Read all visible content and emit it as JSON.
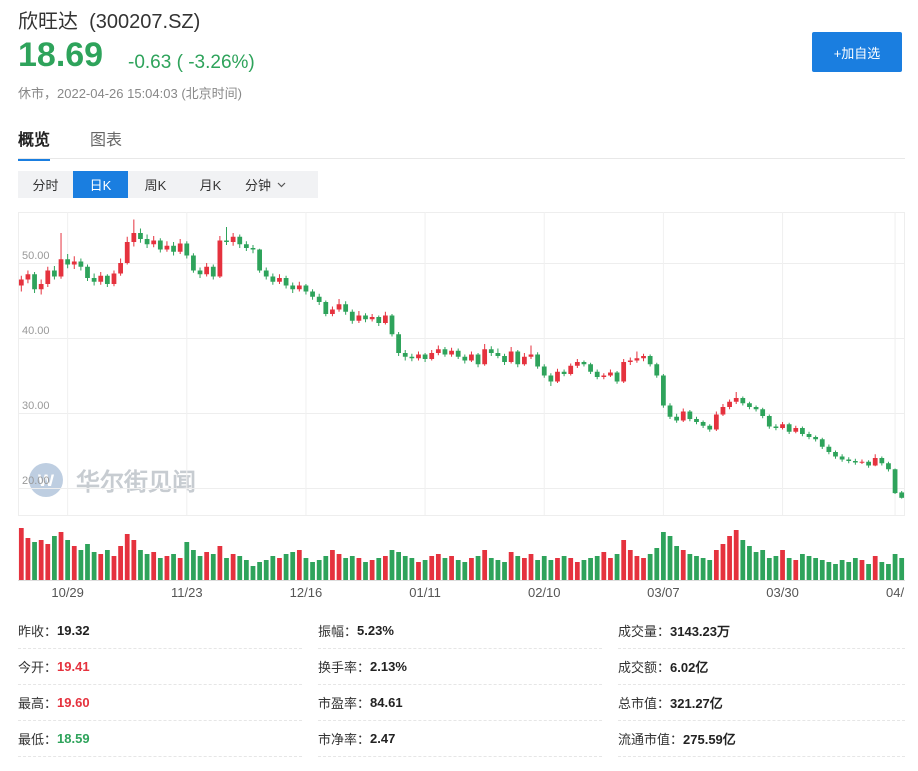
{
  "header": {
    "name": "欣旺达",
    "code": "(300207.SZ)",
    "price": "18.69",
    "change": "-0.63",
    "change_pct": "( -3.26%)",
    "status": "休市，2022-04-26 15:04:03 (北京时间)",
    "watch_button": "+加自选"
  },
  "tabs": [
    "概览",
    "图表"
  ],
  "periods": [
    "分时",
    "日K",
    "周K",
    "月K",
    "分钟"
  ],
  "watermark": "华尔街见闻",
  "chart_data": {
    "type": "candlestick",
    "categories": [
      null,
      null,
      null,
      null,
      null,
      null,
      null,
      "10/29",
      null,
      null,
      null,
      null,
      null,
      null,
      null,
      null,
      null,
      null,
      null,
      null,
      null,
      null,
      null,
      null,
      null,
      "11/23",
      null,
      null,
      null,
      null,
      null,
      null,
      null,
      null,
      null,
      null,
      null,
      null,
      null,
      null,
      null,
      null,
      null,
      "12/16",
      null,
      null,
      null,
      null,
      null,
      null,
      null,
      null,
      null,
      null,
      null,
      null,
      null,
      null,
      null,
      null,
      null,
      "01/11",
      null,
      null,
      null,
      null,
      null,
      null,
      null,
      null,
      null,
      null,
      null,
      null,
      null,
      null,
      null,
      null,
      null,
      "02/10",
      null,
      null,
      null,
      null,
      null,
      null,
      null,
      null,
      null,
      null,
      null,
      null,
      null,
      null,
      null,
      null,
      null,
      "03/07",
      null,
      null,
      null,
      null,
      null,
      null,
      null,
      null,
      null,
      null,
      null,
      null,
      null,
      null,
      null,
      null,
      null,
      "03/30",
      null,
      null,
      null,
      null,
      null,
      null,
      null,
      null,
      null,
      null,
      null,
      null,
      null,
      null,
      null,
      null,
      "04/",
      null
    ],
    "ohlc": [
      [
        47.0,
        48.3,
        46.2,
        47.8
      ],
      [
        47.8,
        49.0,
        47.3,
        48.5
      ],
      [
        48.5,
        48.8,
        46.0,
        46.5
      ],
      [
        46.5,
        47.8,
        45.8,
        47.2
      ],
      [
        47.2,
        49.5,
        46.8,
        49.0
      ],
      [
        49.0,
        49.6,
        47.8,
        48.2
      ],
      [
        48.2,
        54.0,
        47.9,
        50.5
      ],
      [
        50.5,
        51.2,
        49.3,
        49.8
      ],
      [
        49.8,
        50.9,
        49.2,
        50.2
      ],
      [
        50.2,
        50.6,
        49.0,
        49.5
      ],
      [
        49.5,
        49.8,
        47.6,
        48.0
      ],
      [
        48.0,
        48.6,
        47.0,
        47.5
      ],
      [
        47.5,
        48.8,
        47.1,
        48.3
      ],
      [
        48.3,
        48.5,
        46.8,
        47.2
      ],
      [
        47.2,
        49.0,
        46.9,
        48.6
      ],
      [
        48.6,
        50.6,
        48.3,
        50.0
      ],
      [
        50.0,
        53.5,
        49.8,
        52.8
      ],
      [
        52.8,
        55.8,
        52.2,
        54.0
      ],
      [
        54.0,
        54.6,
        52.7,
        53.2
      ],
      [
        53.2,
        53.8,
        52.0,
        52.5
      ],
      [
        52.5,
        53.6,
        52.1,
        53.0
      ],
      [
        53.0,
        53.3,
        51.4,
        51.8
      ],
      [
        51.8,
        52.9,
        51.5,
        52.3
      ],
      [
        52.3,
        52.8,
        51.0,
        51.5
      ],
      [
        51.5,
        53.2,
        51.2,
        52.6
      ],
      [
        52.6,
        52.9,
        50.6,
        51.0
      ],
      [
        51.0,
        51.3,
        48.7,
        49.0
      ],
      [
        49.0,
        49.4,
        48.0,
        48.5
      ],
      [
        48.5,
        50.0,
        48.2,
        49.5
      ],
      [
        49.5,
        49.8,
        47.8,
        48.2
      ],
      [
        48.2,
        53.6,
        48.0,
        53.0
      ],
      [
        53.0,
        54.8,
        52.4,
        52.8
      ],
      [
        52.8,
        54.0,
        52.3,
        53.5
      ],
      [
        53.5,
        53.8,
        52.0,
        52.5
      ],
      [
        52.5,
        52.9,
        51.6,
        52.0
      ],
      [
        52.0,
        52.4,
        51.3,
        51.8
      ],
      [
        51.8,
        51.9,
        48.7,
        49.0
      ],
      [
        49.0,
        49.4,
        47.8,
        48.2
      ],
      [
        48.2,
        48.6,
        47.1,
        47.5
      ],
      [
        47.5,
        48.5,
        47.2,
        48.0
      ],
      [
        48.0,
        48.3,
        46.6,
        47.0
      ],
      [
        47.0,
        47.4,
        46.0,
        46.5
      ],
      [
        46.5,
        47.5,
        46.2,
        47.0
      ],
      [
        47.0,
        47.2,
        45.8,
        46.2
      ],
      [
        46.2,
        46.5,
        45.1,
        45.5
      ],
      [
        45.5,
        45.9,
        44.4,
        44.8
      ],
      [
        44.8,
        45.0,
        42.9,
        43.2
      ],
      [
        43.2,
        44.2,
        42.9,
        43.8
      ],
      [
        43.8,
        45.2,
        43.5,
        44.5
      ],
      [
        44.5,
        44.9,
        43.1,
        43.5
      ],
      [
        43.5,
        43.8,
        41.9,
        42.3
      ],
      [
        42.3,
        43.6,
        42.0,
        43.0
      ],
      [
        43.0,
        43.3,
        42.1,
        42.5
      ],
      [
        42.5,
        43.2,
        42.2,
        42.8
      ],
      [
        42.8,
        43.0,
        41.6,
        42.0
      ],
      [
        42.0,
        43.5,
        41.8,
        43.0
      ],
      [
        43.0,
        43.2,
        40.2,
        40.5
      ],
      [
        40.5,
        40.8,
        37.6,
        38.0
      ],
      [
        38.0,
        38.4,
        37.0,
        37.5
      ],
      [
        37.5,
        37.9,
        36.9,
        37.3
      ],
      [
        37.3,
        38.2,
        37.0,
        37.8
      ],
      [
        37.8,
        38.0,
        36.8,
        37.2
      ],
      [
        37.2,
        38.4,
        37.0,
        38.0
      ],
      [
        38.0,
        39.0,
        37.7,
        38.5
      ],
      [
        38.5,
        38.8,
        37.5,
        37.8
      ],
      [
        37.8,
        38.7,
        37.5,
        38.3
      ],
      [
        38.3,
        38.6,
        37.2,
        37.5
      ],
      [
        37.5,
        37.8,
        36.6,
        37.0
      ],
      [
        37.0,
        38.2,
        36.8,
        37.8
      ],
      [
        37.8,
        38.0,
        36.1,
        36.5
      ],
      [
        36.5,
        39.2,
        36.3,
        38.5
      ],
      [
        38.5,
        38.9,
        37.6,
        38.0
      ],
      [
        38.0,
        38.6,
        37.3,
        37.6
      ],
      [
        37.6,
        37.9,
        36.4,
        36.8
      ],
      [
        36.8,
        38.8,
        36.6,
        38.2
      ],
      [
        38.2,
        38.4,
        36.1,
        36.5
      ],
      [
        36.5,
        38.0,
        36.3,
        37.5
      ],
      [
        37.5,
        39.0,
        37.2,
        37.8
      ],
      [
        37.8,
        38.1,
        35.9,
        36.2
      ],
      [
        36.2,
        36.5,
        34.7,
        35.0
      ],
      [
        35.0,
        35.3,
        33.6,
        34.2
      ],
      [
        34.2,
        35.9,
        34.0,
        35.5
      ],
      [
        35.5,
        35.8,
        34.9,
        35.2
      ],
      [
        35.2,
        36.6,
        35.0,
        36.3
      ],
      [
        36.3,
        37.2,
        36.0,
        36.8
      ],
      [
        36.8,
        37.0,
        36.2,
        36.5
      ],
      [
        36.5,
        36.7,
        35.2,
        35.5
      ],
      [
        35.5,
        35.8,
        34.5,
        34.8
      ],
      [
        34.8,
        35.3,
        34.5,
        35.0
      ],
      [
        35.0,
        35.8,
        34.8,
        35.4
      ],
      [
        35.4,
        35.6,
        33.9,
        34.2
      ],
      [
        34.2,
        37.2,
        34.0,
        36.8
      ],
      [
        36.8,
        37.4,
        36.4,
        37.0
      ],
      [
        37.0,
        38.2,
        36.7,
        37.3
      ],
      [
        37.3,
        37.9,
        36.9,
        37.6
      ],
      [
        37.6,
        37.8,
        36.2,
        36.5
      ],
      [
        36.5,
        36.7,
        34.7,
        35.0
      ],
      [
        35.0,
        35.2,
        30.7,
        31.0
      ],
      [
        31.0,
        31.3,
        29.2,
        29.5
      ],
      [
        29.5,
        29.9,
        28.7,
        29.0
      ],
      [
        29.0,
        30.6,
        28.8,
        30.2
      ],
      [
        30.2,
        30.4,
        28.9,
        29.2
      ],
      [
        29.2,
        29.5,
        28.5,
        28.8
      ],
      [
        28.8,
        29.0,
        28.0,
        28.3
      ],
      [
        28.3,
        28.5,
        27.5,
        27.8
      ],
      [
        27.8,
        30.2,
        27.6,
        29.8
      ],
      [
        29.8,
        31.2,
        29.6,
        30.8
      ],
      [
        30.8,
        31.8,
        30.5,
        31.5
      ],
      [
        31.5,
        32.8,
        31.2,
        32.0
      ],
      [
        32.0,
        32.2,
        31.0,
        31.3
      ],
      [
        31.3,
        31.5,
        30.5,
        30.8
      ],
      [
        30.8,
        31.0,
        30.2,
        30.5
      ],
      [
        30.5,
        30.7,
        29.3,
        29.6
      ],
      [
        29.6,
        29.8,
        27.9,
        28.2
      ],
      [
        28.2,
        28.5,
        27.7,
        28.0
      ],
      [
        28.0,
        28.8,
        27.8,
        28.5
      ],
      [
        28.5,
        28.7,
        27.2,
        27.5
      ],
      [
        27.5,
        28.3,
        27.3,
        28.0
      ],
      [
        28.0,
        28.2,
        26.9,
        27.2
      ],
      [
        27.2,
        27.5,
        26.5,
        26.8
      ],
      [
        26.8,
        27.0,
        26.2,
        26.5
      ],
      [
        26.5,
        26.7,
        25.2,
        25.5
      ],
      [
        25.5,
        25.8,
        24.5,
        24.8
      ],
      [
        24.8,
        25.0,
        23.9,
        24.2
      ],
      [
        24.2,
        24.5,
        23.5,
        23.8
      ],
      [
        23.8,
        24.1,
        23.3,
        23.6
      ],
      [
        23.6,
        23.9,
        23.1,
        23.4
      ],
      [
        23.4,
        23.8,
        23.2,
        23.5
      ],
      [
        23.5,
        23.7,
        22.7,
        23.0
      ],
      [
        23.0,
        24.5,
        22.9,
        24.0
      ],
      [
        24.0,
        24.2,
        23.0,
        23.3
      ],
      [
        23.3,
        23.5,
        22.2,
        22.5
      ],
      [
        22.5,
        22.6,
        19.2,
        19.32
      ],
      [
        19.41,
        19.6,
        18.59,
        18.69
      ]
    ],
    "volume": [
      52,
      42,
      38,
      40,
      36,
      44,
      48,
      40,
      34,
      30,
      36,
      28,
      26,
      30,
      24,
      34,
      46,
      40,
      30,
      26,
      28,
      22,
      24,
      26,
      22,
      38,
      30,
      24,
      28,
      26,
      34,
      22,
      26,
      24,
      20,
      14,
      18,
      20,
      24,
      22,
      26,
      28,
      30,
      22,
      18,
      20,
      24,
      30,
      26,
      22,
      24,
      22,
      18,
      20,
      22,
      24,
      30,
      28,
      24,
      22,
      18,
      20,
      24,
      26,
      22,
      24,
      20,
      18,
      22,
      24,
      30,
      22,
      20,
      18,
      28,
      24,
      22,
      26,
      20,
      24,
      20,
      22,
      24,
      22,
      18,
      20,
      22,
      24,
      28,
      22,
      26,
      40,
      30,
      24,
      22,
      26,
      32,
      48,
      44,
      34,
      30,
      26,
      24,
      22,
      20,
      30,
      36,
      44,
      50,
      40,
      34,
      28,
      30,
      22,
      24,
      30,
      22,
      20,
      26,
      24,
      22,
      20,
      18,
      16,
      20,
      18,
      22,
      20,
      16,
      24,
      18,
      16,
      26,
      22
    ],
    "up_color": "#e5323e",
    "down_color": "#2ea35b",
    "ylim": [
      16.4,
      56.8
    ],
    "yticks": [
      {
        "value": 20,
        "label": "20.00"
      },
      {
        "value": 30,
        "label": "30.00"
      },
      {
        "value": 40,
        "label": "40.00"
      },
      {
        "value": 50,
        "label": "50.00"
      }
    ],
    "grid": true
  },
  "stats": [
    {
      "label": "昨收：",
      "value": "19.32"
    },
    {
      "label": "振幅：",
      "value": "5.23%"
    },
    {
      "label": "成交量：",
      "value": "3143.23万"
    },
    {
      "label": "今开：",
      "value": "19.41",
      "color": "#e5323e"
    },
    {
      "label": "换手率：",
      "value": "2.13%"
    },
    {
      "label": "成交额：",
      "value": "6.02亿"
    },
    {
      "label": "最高：",
      "value": "19.60",
      "color": "#e5323e"
    },
    {
      "label": "市盈率：",
      "value": "84.61"
    },
    {
      "label": "总市值：",
      "value": "321.27亿"
    },
    {
      "label": "最低：",
      "value": "18.59",
      "color": "#2ea35b"
    },
    {
      "label": "市净率：",
      "value": "2.47"
    },
    {
      "label": "流通市值：",
      "value": "275.59亿"
    }
  ]
}
